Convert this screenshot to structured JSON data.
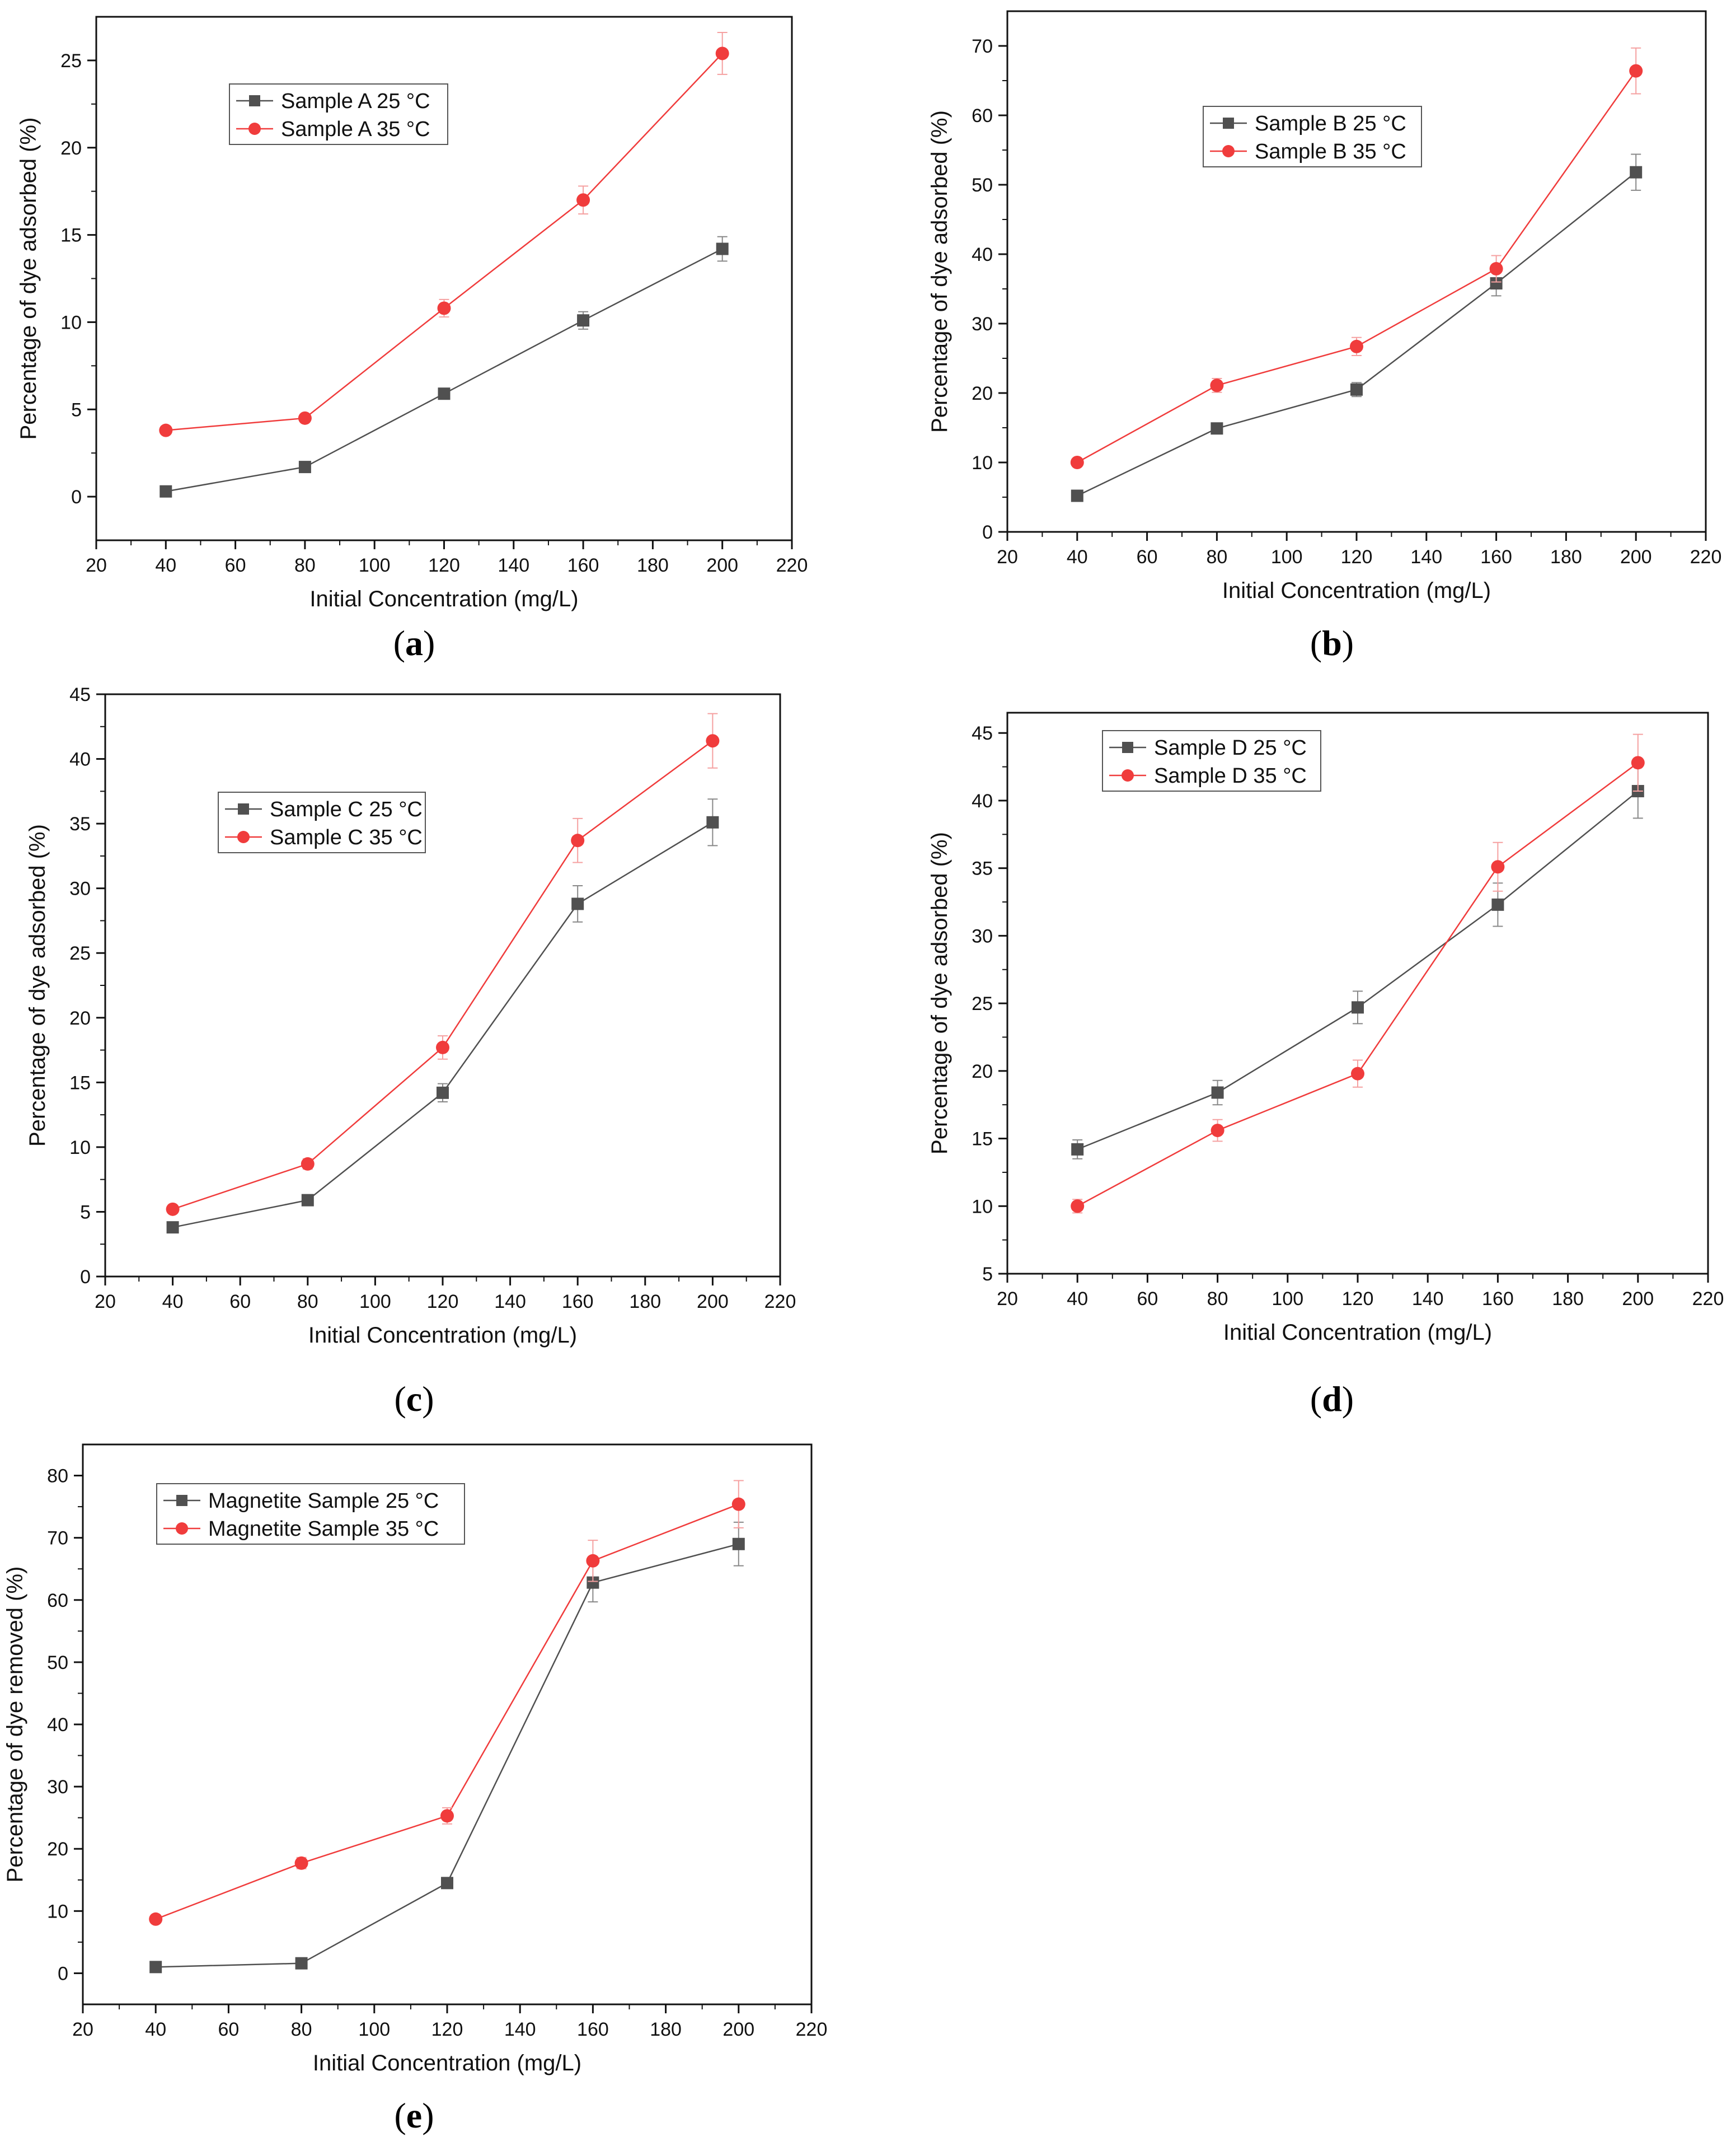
{
  "colors": {
    "dark_series": "#505050",
    "red_series": "#f03c3c",
    "red_errorbar": "#f5a0a0",
    "dark_errorbar": "#888888",
    "axis": "#111111"
  },
  "chart_data": [
    {
      "panel_label": "a",
      "type": "line",
      "xlabel": "Initial Concentration (mg/L)",
      "ylabel": "Percentage of dye adsorbed (%)",
      "xlim": [
        20,
        220
      ],
      "ylim": [
        -2.5,
        27.5
      ],
      "xticks": [
        20,
        40,
        60,
        80,
        100,
        120,
        140,
        160,
        180,
        200,
        220
      ],
      "yticks": [
        0,
        5,
        10,
        15,
        20,
        25
      ],
      "x": [
        40,
        80,
        120,
        160,
        200
      ],
      "legend_position": "top-left",
      "series": [
        {
          "name": "Sample A 25 °C",
          "marker": "square",
          "color": "#505050",
          "values": [
            0.3,
            1.7,
            5.9,
            10.1,
            14.2
          ],
          "errors": [
            0.2,
            0.2,
            0.3,
            0.5,
            0.7
          ]
        },
        {
          "name": "Sample A 35 °C",
          "marker": "circle",
          "color": "#f03c3c",
          "values": [
            3.8,
            4.5,
            10.8,
            17.0,
            25.4
          ],
          "errors": [
            0.2,
            0.2,
            0.5,
            0.8,
            1.2
          ]
        }
      ]
    },
    {
      "panel_label": "b",
      "type": "line",
      "xlabel": "Initial Concentration (mg/L)",
      "ylabel": "Percentage of dye adsorbed (%)",
      "xlim": [
        20,
        220
      ],
      "ylim": [
        0,
        75
      ],
      "xticks": [
        20,
        40,
        60,
        80,
        100,
        120,
        140,
        160,
        180,
        200,
        220
      ],
      "yticks": [
        0,
        10,
        20,
        30,
        40,
        50,
        60,
        70
      ],
      "x": [
        40,
        80,
        120,
        160,
        200
      ],
      "legend_position": "top-center",
      "series": [
        {
          "name": "Sample B 25 °C",
          "marker": "square",
          "color": "#505050",
          "values": [
            5.2,
            14.9,
            20.5,
            35.8,
            51.8
          ],
          "errors": [
            0.3,
            0.6,
            1.0,
            1.8,
            2.6
          ]
        },
        {
          "name": "Sample B 35 °C",
          "marker": "circle",
          "color": "#f03c3c",
          "values": [
            10.0,
            21.1,
            26.7,
            37.9,
            66.4
          ],
          "errors": [
            0.5,
            1.0,
            1.3,
            1.9,
            3.3
          ]
        }
      ]
    },
    {
      "panel_label": "c",
      "type": "line",
      "xlabel": "Initial Concentration (mg/L)",
      "ylabel": "Percentage of dye adsorbed (%)",
      "xlim": [
        20,
        220
      ],
      "ylim": [
        0,
        45
      ],
      "xticks": [
        20,
        40,
        60,
        80,
        100,
        120,
        140,
        160,
        180,
        200,
        220
      ],
      "yticks": [
        0,
        5,
        10,
        15,
        20,
        25,
        30,
        35,
        40,
        45
      ],
      "x": [
        40,
        80,
        120,
        160,
        200
      ],
      "legend_position": "top-left",
      "series": [
        {
          "name": "Sample C 25 °C",
          "marker": "square",
          "color": "#505050",
          "values": [
            3.8,
            5.9,
            14.2,
            28.8,
            35.1
          ],
          "errors": [
            0.2,
            0.3,
            0.7,
            1.4,
            1.8
          ]
        },
        {
          "name": "Sample C 35 °C",
          "marker": "circle",
          "color": "#f03c3c",
          "values": [
            5.2,
            8.7,
            17.7,
            33.7,
            41.4
          ],
          "errors": [
            0.3,
            0.4,
            0.9,
            1.7,
            2.1
          ]
        }
      ]
    },
    {
      "panel_label": "d",
      "type": "line",
      "xlabel": "Initial Concentration (mg/L)",
      "ylabel": "Percentage of dye adsorbed (%)",
      "xlim": [
        20,
        220
      ],
      "ylim": [
        5,
        46.5
      ],
      "xticks": [
        20,
        40,
        60,
        80,
        100,
        120,
        140,
        160,
        180,
        200,
        220
      ],
      "yticks": [
        5,
        10,
        15,
        20,
        25,
        30,
        35,
        40,
        45
      ],
      "x": [
        40,
        80,
        120,
        160,
        200
      ],
      "legend_position": "top-left",
      "series": [
        {
          "name": "Sample D 25 °C",
          "marker": "square",
          "color": "#505050",
          "values": [
            14.2,
            18.4,
            24.7,
            32.3,
            40.7
          ],
          "errors": [
            0.7,
            0.9,
            1.2,
            1.6,
            2.0
          ]
        },
        {
          "name": "Sample D 35 °C",
          "marker": "circle",
          "color": "#f03c3c",
          "values": [
            10.0,
            15.6,
            19.8,
            35.1,
            42.8
          ],
          "errors": [
            0.5,
            0.8,
            1.0,
            1.8,
            2.1
          ]
        }
      ]
    },
    {
      "panel_label": "e",
      "type": "line",
      "xlabel": "Initial Concentration (mg/L)",
      "ylabel": "Percentage of dye removed (%)",
      "xlim": [
        20,
        220
      ],
      "ylim": [
        -5,
        85
      ],
      "xticks": [
        20,
        40,
        60,
        80,
        100,
        120,
        140,
        160,
        180,
        200,
        220
      ],
      "yticks": [
        0,
        10,
        20,
        30,
        40,
        50,
        60,
        70,
        80
      ],
      "x": [
        40,
        80,
        120,
        160,
        200
      ],
      "legend_position": "top-left",
      "series": [
        {
          "name": "Magnetite Sample 25 °C",
          "marker": "square",
          "color": "#505050",
          "values": [
            1.0,
            1.6,
            14.5,
            62.8,
            69.0
          ],
          "errors": [
            0.1,
            0.1,
            0.7,
            3.1,
            3.5
          ]
        },
        {
          "name": "Magnetite Sample 35 °C",
          "marker": "circle",
          "color": "#f03c3c",
          "values": [
            8.7,
            17.7,
            25.3,
            66.3,
            75.4
          ],
          "errors": [
            0.4,
            0.9,
            1.3,
            3.3,
            3.8
          ]
        }
      ]
    }
  ]
}
